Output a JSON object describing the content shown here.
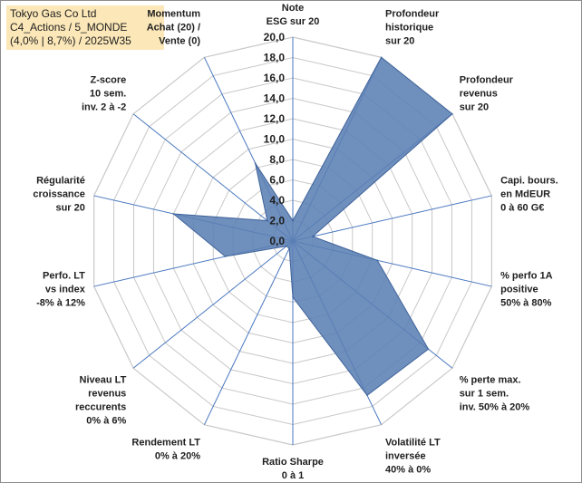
{
  "header": {
    "line1": "Tokyo Gas Co Ltd",
    "line2": "C4_Actions / 5_MONDE",
    "line3": "(4,0% | 8,7%) / 2025W35"
  },
  "colors": {
    "fill": "#5b7fb4",
    "grid": "#c8c8c8",
    "spoke": "#4a78c0",
    "title_bg": "#fbe7b8"
  },
  "chart_data": {
    "type": "radar",
    "range": [
      0,
      20
    ],
    "tick_step": 2,
    "tick_labels": [
      "0,0",
      "2,0",
      "4,0",
      "6,0",
      "8,0",
      "10,0",
      "12,0",
      "14,0",
      "16,0",
      "18,0",
      "20,0"
    ],
    "axes": [
      {
        "label": [
          "Note",
          "ESG sur 20"
        ],
        "value": 2.0
      },
      {
        "label": [
          "Profondeur",
          "historique",
          "sur 20"
        ],
        "value": 20.0
      },
      {
        "label": [
          "Profondeur",
          "revenus",
          "sur 20"
        ],
        "value": 20.0
      },
      {
        "label": [
          "Capi. bours.",
          "en MdEUR",
          "0 à 60 G€"
        ],
        "value": 2.0
      },
      {
        "label": [
          "% perfo 1A",
          "positive",
          "50% à 80%"
        ],
        "value": 8.5
      },
      {
        "label": [
          "% perte max.",
          "sur 1 sem.",
          "inv. 50% à 20%"
        ],
        "value": 17.0
      },
      {
        "label": [
          "Volatilité LT",
          "inversée",
          "40% à 0%"
        ],
        "value": 16.8
      },
      {
        "label": [
          "Ratio Sharpe",
          "0 à 1"
        ],
        "value": 5.5
      },
      {
        "label": [
          "Rendement LT",
          "0% à 20%"
        ],
        "value": 0.8
      },
      {
        "label": [
          "Niveau LT",
          "revenus",
          "reccurents",
          "0% à 6%"
        ],
        "value": 0.8
      },
      {
        "label": [
          "Perfo. LT",
          "vs index",
          "-8% à 12%"
        ],
        "value": 6.8
      },
      {
        "label": [
          "Régularité",
          "croissance",
          "sur 20"
        ],
        "value": 12.0
      },
      {
        "label": [
          "Z-score",
          "10 sem.",
          "inv. 2 à -2"
        ],
        "value": 3.2
      },
      {
        "label": [
          "Momentum",
          "Achat (20) /",
          "Vente (0)"
        ],
        "value": 8.5
      }
    ]
  }
}
